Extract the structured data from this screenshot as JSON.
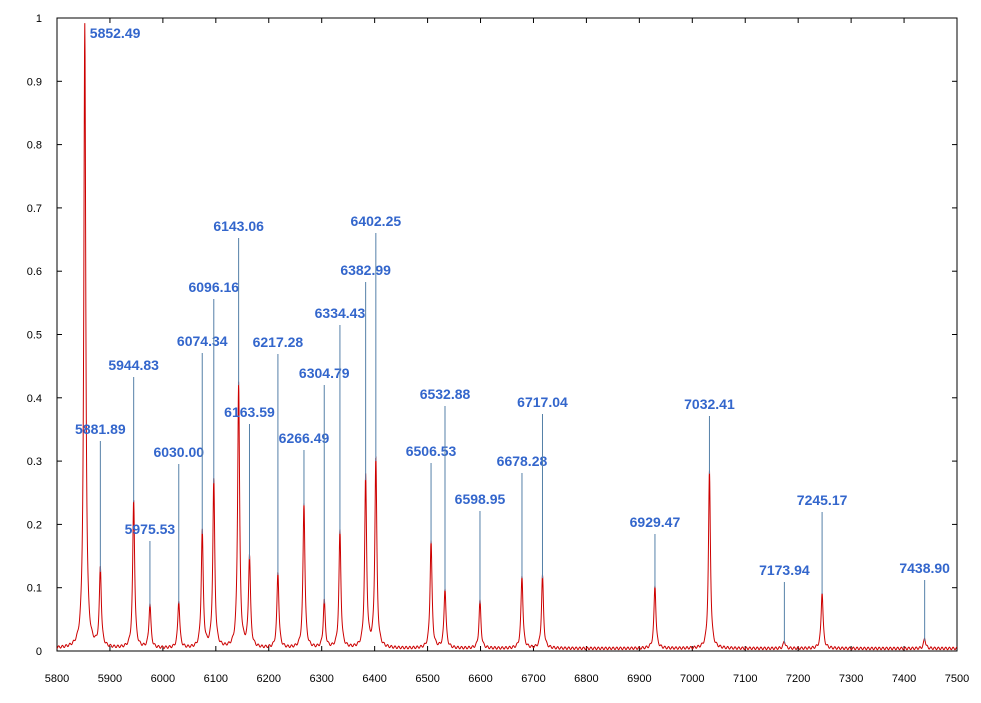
{
  "chart_data": {
    "type": "line",
    "title": "",
    "xlabel": "",
    "ylabel": "",
    "xlim": [
      5800,
      7500
    ],
    "ylim": [
      0,
      1
    ],
    "x_ticks": [
      5800,
      5900,
      6000,
      6100,
      6200,
      6300,
      6400,
      6500,
      6600,
      6700,
      6800,
      6900,
      7000,
      7100,
      7200,
      7300,
      7400,
      7500
    ],
    "y_ticks": [
      0,
      0.1,
      0.2,
      0.3,
      0.4,
      0.5,
      0.6,
      0.7,
      0.8,
      0.9,
      1
    ],
    "x_tick_labels": [
      "5800",
      "5900",
      "6000",
      "6100",
      "6200",
      "6300",
      "6400",
      "6500",
      "6600",
      "6700",
      "6800",
      "6900",
      "7000",
      "7100",
      "7200",
      "7300",
      "7400",
      "7500"
    ],
    "y_tick_labels": [
      "0",
      "0.1",
      "0.2",
      "0.3",
      "0.4",
      "0.5",
      "0.6",
      "0.7",
      "0.8",
      "0.9",
      "1"
    ],
    "grid": false,
    "series_color": "#cc0000",
    "label_color": "#3366cc",
    "peaks": [
      {
        "x": 5852.49,
        "intensity": 0.985,
        "label": "5852.49"
      },
      {
        "x": 5881.89,
        "intensity": 0.125,
        "label": "5881.89"
      },
      {
        "x": 5944.83,
        "intensity": 0.235,
        "label": "5944.83"
      },
      {
        "x": 5975.53,
        "intensity": 0.07,
        "label": "5975.53"
      },
      {
        "x": 6030.0,
        "intensity": 0.075,
        "label": "6030.00"
      },
      {
        "x": 6074.34,
        "intensity": 0.185,
        "label": "6074.34"
      },
      {
        "x": 6096.16,
        "intensity": 0.265,
        "label": "6096.16"
      },
      {
        "x": 6143.06,
        "intensity": 0.42,
        "label": "6143.06"
      },
      {
        "x": 6163.59,
        "intensity": 0.145,
        "label": "6163.59"
      },
      {
        "x": 6217.28,
        "intensity": 0.12,
        "label": "6217.28"
      },
      {
        "x": 6266.49,
        "intensity": 0.23,
        "label": "6266.49"
      },
      {
        "x": 6304.79,
        "intensity": 0.075,
        "label": "6304.79"
      },
      {
        "x": 6334.43,
        "intensity": 0.185,
        "label": "6334.43"
      },
      {
        "x": 6382.99,
        "intensity": 0.27,
        "label": "6382.99"
      },
      {
        "x": 6402.25,
        "intensity": 0.3,
        "label": "6402.25"
      },
      {
        "x": 6506.53,
        "intensity": 0.17,
        "label": "6506.53"
      },
      {
        "x": 6532.88,
        "intensity": 0.095,
        "label": "6532.88"
      },
      {
        "x": 6598.95,
        "intensity": 0.075,
        "label": "6598.95"
      },
      {
        "x": 6678.28,
        "intensity": 0.115,
        "label": "6678.28"
      },
      {
        "x": 6717.04,
        "intensity": 0.115,
        "label": "6717.04"
      },
      {
        "x": 6929.47,
        "intensity": 0.1,
        "label": "6929.47"
      },
      {
        "x": 7032.41,
        "intensity": 0.28,
        "label": "7032.41"
      },
      {
        "x": 7173.94,
        "intensity": 0.012,
        "label": "7173.94"
      },
      {
        "x": 7245.17,
        "intensity": 0.09,
        "label": "7245.17"
      },
      {
        "x": 7438.9,
        "intensity": 0.016,
        "label": "7438.90"
      }
    ]
  }
}
